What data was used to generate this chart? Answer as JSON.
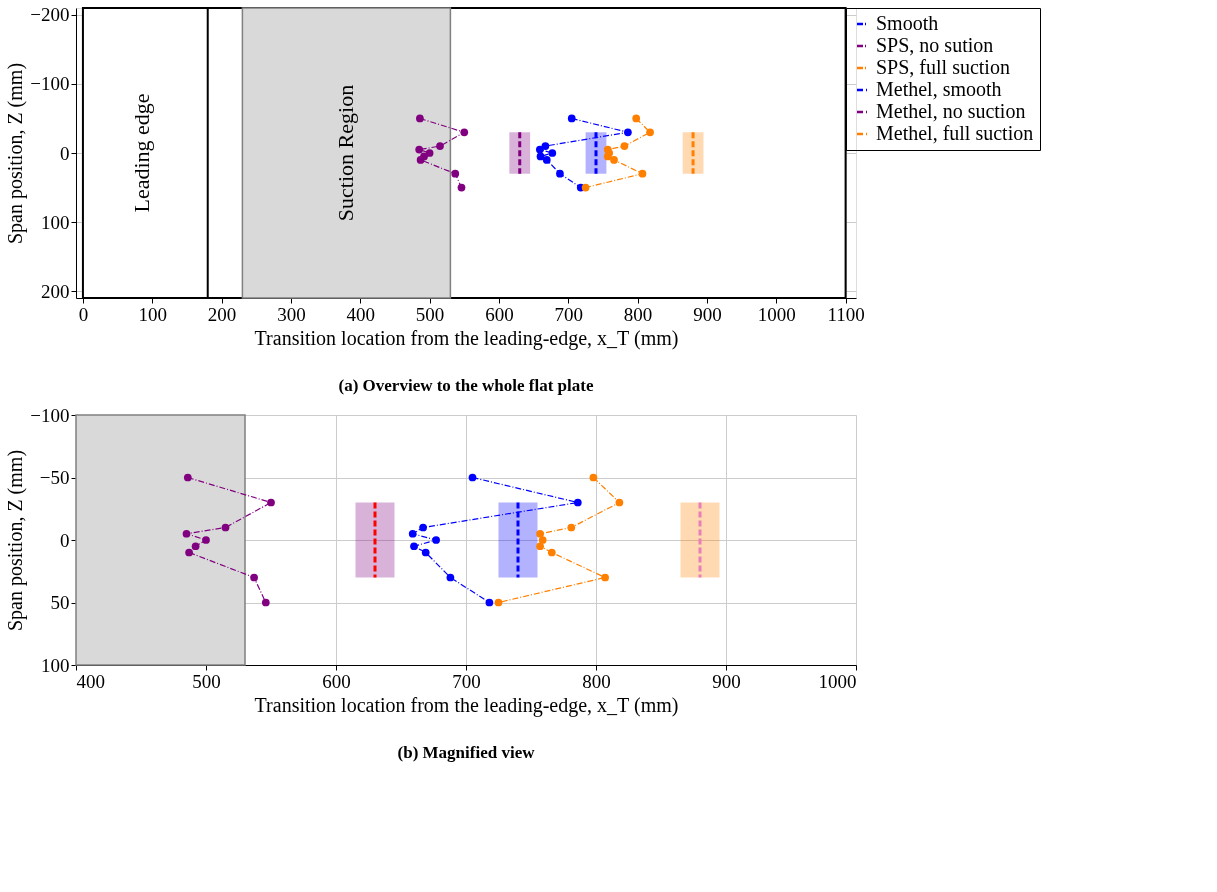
{
  "chart_data": [
    {
      "type": "line",
      "title": "(a) Overview to the whole flat plate",
      "xlabel": "Transition location from the leading-edge, x_T (mm)",
      "ylabel": "Span position, Z (mm)",
      "xlim": [
        -10,
        1115
      ],
      "xticks": [
        0,
        100,
        200,
        300,
        400,
        500,
        600,
        700,
        800,
        900,
        1000,
        1100
      ],
      "ylim": [
        210,
        -210
      ],
      "yticks": [
        -200,
        -100,
        0,
        100,
        200
      ],
      "grid": true,
      "legend": "top right",
      "ref_lines": [
        {
          "axis": "x",
          "value": 180,
          "label": "Leading edge",
          "color": "#000000"
        }
      ],
      "bands": [
        {
          "axis": "x",
          "from": 0,
          "to": 1100,
          "color": "#ffffff"
        },
        {
          "axis": "x",
          "from": 230,
          "to": 530,
          "label": "Suction Region",
          "color": "#d9d9d9"
        }
      ],
      "series": [
        {
          "name": "Smooth",
          "color": "#0000ff",
          "marker": "circle",
          "line_style": "dotted",
          "x": [
            705,
            786,
            667,
            659,
            677,
            660,
            669,
            688,
            718
          ],
          "values": [
            -50,
            -30,
            -10,
            -5,
            0,
            5,
            10,
            30,
            50
          ]
        },
        {
          "name": "SPS, no sution",
          "color": "#800080",
          "marker": "circle",
          "line_style": "dotted",
          "x": [
            486,
            550,
            515,
            485,
            500,
            492,
            487,
            537,
            546
          ],
          "values": [
            -50,
            -30,
            -10,
            -5,
            0,
            5,
            10,
            30,
            50
          ]
        },
        {
          "name": "SPS, full suction",
          "color": "#ff8000",
          "marker": "circle",
          "line_style": "dotted",
          "x": [
            798,
            818,
            781,
            757,
            759,
            757,
            766,
            807,
            725
          ],
          "values": [
            -50,
            -30,
            -10,
            -5,
            0,
            5,
            10,
            30,
            50
          ]
        },
        {
          "name": "Methel, smooth",
          "color": "#0000ff",
          "marker": "none",
          "line_style": "dashed",
          "x": [
            740,
            740
          ],
          "values": [
            -30,
            30
          ]
        },
        {
          "name": "Methel, no suction",
          "color": "#800080",
          "marker": "none",
          "line_style": "dashed",
          "x": [
            630,
            630
          ],
          "values": [
            -30,
            30
          ]
        },
        {
          "name": "Methel, full suction",
          "color": "#ff8000",
          "marker": "none",
          "line_style": "dashed",
          "x": [
            880,
            880
          ],
          "values": [
            -30,
            30
          ]
        },
        {
          "type": "area",
          "color": "#0000ff",
          "x": [
            725,
            755
          ],
          "values": [
            null,
            null
          ],
          "lower": [
            -30,
            -30
          ],
          "upper": [
            30,
            30
          ]
        },
        {
          "type": "area",
          "color": "#800080",
          "x": [
            615,
            645
          ],
          "values": [
            null,
            null
          ],
          "lower": [
            -30,
            -30
          ],
          "upper": [
            30,
            30
          ]
        },
        {
          "type": "area",
          "color": "#ff8000",
          "x": [
            865,
            895
          ],
          "values": [
            null,
            null
          ],
          "lower": [
            -30,
            -30
          ],
          "upper": [
            30,
            30
          ]
        }
      ]
    },
    {
      "type": "line",
      "title": "(b) Magnified view",
      "xlabel": "Transition location from the leading-edge, x_T (mm)",
      "ylabel": "Span position, Z (mm)",
      "xlim": [
        400,
        1000
      ],
      "xticks": [
        400,
        500,
        600,
        700,
        800,
        900,
        1000
      ],
      "ylim": [
        100,
        -100
      ],
      "yticks": [
        -100,
        -50,
        0,
        50,
        100
      ],
      "grid": true,
      "bands": [
        {
          "axis": "x",
          "from": 400,
          "to": 530,
          "color": "#d9d9d9"
        }
      ],
      "series": [
        {
          "color": "#0000ff",
          "marker": "circle",
          "line_style": "dotted",
          "x": [
            705,
            786,
            667,
            659,
            677,
            660,
            669,
            688,
            718
          ],
          "values": [
            -50,
            -30,
            -10,
            -5,
            0,
            5,
            10,
            30,
            50
          ]
        },
        {
          "color": "#800080",
          "marker": "circle",
          "line_style": "dotted",
          "x": [
            486,
            550,
            515,
            485,
            500,
            492,
            487,
            537,
            546
          ],
          "values": [
            -50,
            -30,
            -10,
            -5,
            0,
            5,
            10,
            30,
            50
          ]
        },
        {
          "color": "#ff8000",
          "marker": "circle",
          "line_style": "dotted",
          "x": [
            798,
            818,
            781,
            757,
            759,
            757,
            766,
            807,
            725
          ],
          "values": [
            -50,
            -30,
            -10,
            -5,
            0,
            5,
            10,
            30,
            50
          ]
        },
        {
          "color": "#0000ff",
          "marker": "none",
          "line_style": "dashed",
          "x": [
            740,
            740
          ],
          "values": [
            -30,
            30
          ]
        },
        {
          "color": "#ff0000",
          "marker": "none",
          "line_style": "dashed",
          "x": [
            630,
            630
          ],
          "values": [
            -30,
            30
          ]
        },
        {
          "color": "#e87fb8",
          "marker": "none",
          "line_style": "dashed",
          "x": [
            880,
            880
          ],
          "values": [
            -30,
            30
          ]
        },
        {
          "type": "area",
          "color": "#0000ff",
          "x": [
            725,
            755
          ],
          "values": [
            null,
            null
          ],
          "lower": [
            -30,
            -30
          ],
          "upper": [
            30,
            30
          ]
        },
        {
          "type": "area",
          "color": "#800080",
          "x": [
            615,
            645
          ],
          "values": [
            null,
            null
          ],
          "lower": [
            -30,
            -30
          ],
          "upper": [
            30,
            30
          ]
        },
        {
          "type": "area",
          "color": "#ff8000",
          "x": [
            865,
            895
          ],
          "values": [
            null,
            null
          ],
          "lower": [
            -30,
            -30
          ],
          "upper": [
            30,
            30
          ]
        }
      ]
    }
  ]
}
